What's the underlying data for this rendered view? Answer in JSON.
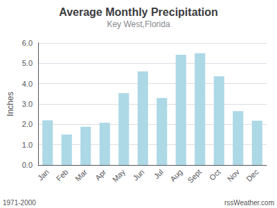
{
  "chart_data": {
    "type": "bar",
    "title": "Average Monthly Precipitation",
    "subtitle": "Key West,Florida",
    "ylabel": "Inches",
    "categories": [
      "Jan",
      "Feb",
      "Mar",
      "Apr",
      "May",
      "Jun",
      "Jul",
      "Aug",
      "Sept",
      "Oct",
      "Nov",
      "Dec"
    ],
    "values": [
      2.2,
      1.5,
      1.88,
      2.08,
      3.54,
      4.6,
      3.3,
      5.42,
      5.5,
      4.36,
      2.65,
      2.18
    ],
    "color": "#add8e6",
    "ylim": [
      0.0,
      6.0
    ],
    "yticks": [
      {
        "value": 0.0,
        "label": "0.0"
      },
      {
        "value": 1.0,
        "label": "1.0"
      },
      {
        "value": 2.0,
        "label": "2.0"
      },
      {
        "value": 3.0,
        "label": "3.0"
      },
      {
        "value": 4.0,
        "label": "4.0"
      },
      {
        "value": 5.0,
        "label": "5.0"
      },
      {
        "value": 6.0,
        "label": "6.0"
      }
    ],
    "grid": true,
    "annotations": [
      "1971-2000",
      "rssWeather.com"
    ]
  }
}
